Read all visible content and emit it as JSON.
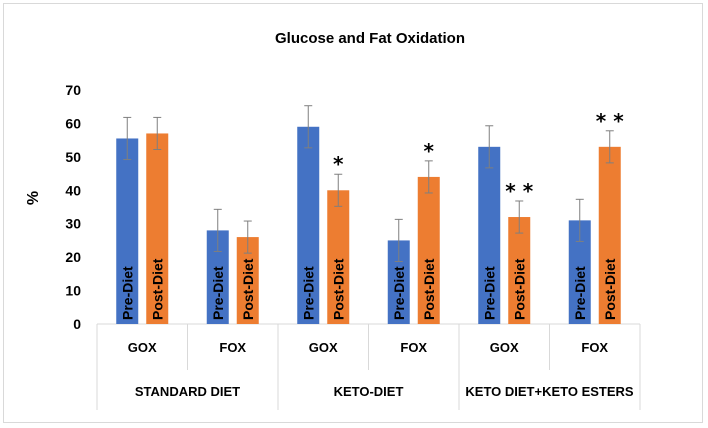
{
  "chart_data": {
    "type": "bar",
    "title": "Glucose and Fat Oxidation",
    "ylabel": "%",
    "xlabel": "",
    "ylim": [
      0,
      70
    ],
    "yticks": [
      0,
      10,
      20,
      30,
      40,
      50,
      60,
      70
    ],
    "grid": false,
    "colors": {
      "Pre-Diet": "#4472C4",
      "Post-Diet": "#ED7D31"
    },
    "groups": [
      {
        "label": "STANDARD DIET",
        "subcategories": [
          {
            "label": "GOX",
            "bars": [
              {
                "series": "Pre-Diet",
                "value": 55.5,
                "error": 6.3,
                "significance": ""
              },
              {
                "series": "Post-Diet",
                "value": 57,
                "error": 4.8,
                "significance": ""
              }
            ]
          },
          {
            "label": "FOX",
            "bars": [
              {
                "series": "Pre-Diet",
                "value": 28,
                "error": 6.3,
                "significance": ""
              },
              {
                "series": "Post-Diet",
                "value": 26,
                "error": 4.8,
                "significance": ""
              }
            ]
          }
        ]
      },
      {
        "label": "KETO-DIET",
        "subcategories": [
          {
            "label": "GOX",
            "bars": [
              {
                "series": "Pre-Diet",
                "value": 59,
                "error": 6.3,
                "significance": ""
              },
              {
                "series": "Post-Diet",
                "value": 40,
                "error": 4.8,
                "significance": "*"
              }
            ]
          },
          {
            "label": "FOX",
            "bars": [
              {
                "series": "Pre-Diet",
                "value": 25,
                "error": 6.3,
                "significance": ""
              },
              {
                "series": "Post-Diet",
                "value": 44,
                "error": 4.8,
                "significance": "*"
              }
            ]
          }
        ]
      },
      {
        "label": "KETO DIET+KETO ESTERS",
        "subcategories": [
          {
            "label": "GOX",
            "bars": [
              {
                "series": "Pre-Diet",
                "value": 53,
                "error": 6.3,
                "significance": ""
              },
              {
                "series": "Post-Diet",
                "value": 32,
                "error": 4.8,
                "significance": "**"
              }
            ]
          },
          {
            "label": "FOX",
            "bars": [
              {
                "series": "Pre-Diet",
                "value": 31,
                "error": 6.3,
                "significance": ""
              },
              {
                "series": "Post-Diet",
                "value": 53,
                "error": 4.8,
                "significance": "**"
              }
            ]
          }
        ]
      }
    ]
  }
}
